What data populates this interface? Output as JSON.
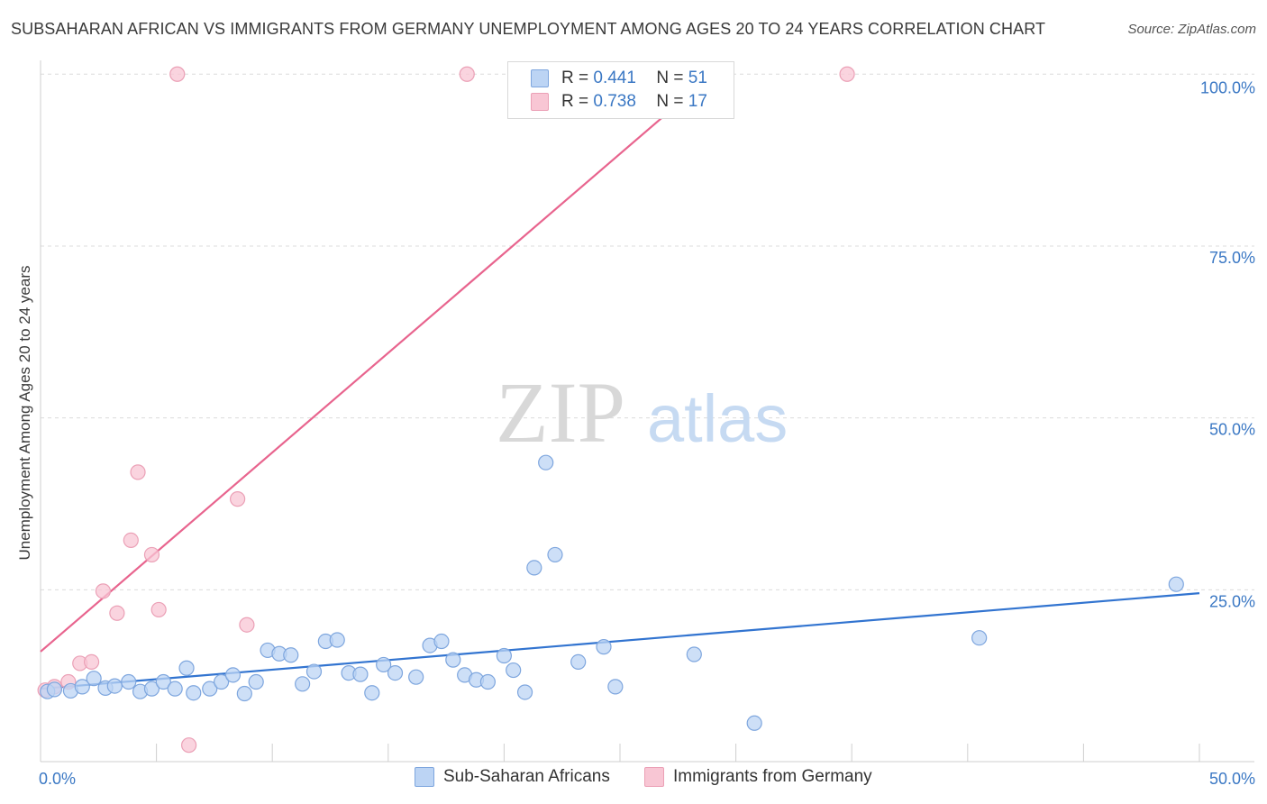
{
  "header": {
    "title": "SUBSAHARAN AFRICAN VS IMMIGRANTS FROM GERMANY UNEMPLOYMENT AMONG AGES 20 TO 24 YEARS CORRELATION CHART",
    "source": "Source: ZipAtlas.com"
  },
  "watermark": {
    "zip": "ZIP",
    "atlas": "atlas"
  },
  "legend": {
    "r_label": "R =",
    "n_label": "N =",
    "series": [
      {
        "name": "Sub-Saharan Africans",
        "r": "0.441",
        "n": "51"
      },
      {
        "name": "Immigrants from Germany",
        "r": "0.738",
        "n": "17"
      }
    ]
  },
  "colors": {
    "blue_fill": "#bcd4f4",
    "blue_stroke": "#7ea6de",
    "blue_line": "#3274d0",
    "pink_fill": "#f8c6d4",
    "pink_stroke": "#eba0b6",
    "pink_line": "#e8648e",
    "axis_text": "#3b78c4"
  },
  "chart_data": {
    "type": "scatter",
    "title": "SUBSAHARAN AFRICAN VS IMMIGRANTS FROM GERMANY UNEMPLOYMENT AMONG AGES 20 TO 24 YEARS CORRELATION CHART",
    "xlabel": "",
    "ylabel": "Unemployment Among Ages 20 to 24 years",
    "xlim": [
      0,
      50
    ],
    "ylim": [
      0,
      102
    ],
    "x_tick_labels": [
      {
        "value": 0,
        "label": "0.0%"
      },
      {
        "value": 50,
        "label": "50.0%"
      }
    ],
    "y_tick_labels": [
      {
        "value": 25,
        "label": "25.0%"
      },
      {
        "value": 50,
        "label": "50.0%"
      },
      {
        "value": 75,
        "label": "75.0%"
      },
      {
        "value": 100,
        "label": "100.0%"
      }
    ],
    "series": [
      {
        "name": "Sub-Saharan Africans",
        "trend": {
          "x": [
            0,
            50
          ],
          "y": [
            10.6,
            24.5
          ]
        },
        "points": [
          [
            0.3,
            10.2
          ],
          [
            0.6,
            10.5
          ],
          [
            1.3,
            10.3
          ],
          [
            1.8,
            10.9
          ],
          [
            2.3,
            12.1
          ],
          [
            2.8,
            10.7
          ],
          [
            3.2,
            11.0
          ],
          [
            3.8,
            11.6
          ],
          [
            4.3,
            10.2
          ],
          [
            4.8,
            10.6
          ],
          [
            5.3,
            11.6
          ],
          [
            5.8,
            10.6
          ],
          [
            6.3,
            13.6
          ],
          [
            6.6,
            10.0
          ],
          [
            7.3,
            10.6
          ],
          [
            7.8,
            11.6
          ],
          [
            8.3,
            12.6
          ],
          [
            8.8,
            9.9
          ],
          [
            9.3,
            11.6
          ],
          [
            9.8,
            16.2
          ],
          [
            10.3,
            15.7
          ],
          [
            10.8,
            15.5
          ],
          [
            11.3,
            11.3
          ],
          [
            11.8,
            13.1
          ],
          [
            12.3,
            17.5
          ],
          [
            12.8,
            17.7
          ],
          [
            13.3,
            12.9
          ],
          [
            13.8,
            12.7
          ],
          [
            14.3,
            10.0
          ],
          [
            14.8,
            14.1
          ],
          [
            15.3,
            12.9
          ],
          [
            16.2,
            12.3
          ],
          [
            16.8,
            16.9
          ],
          [
            17.3,
            17.5
          ],
          [
            17.8,
            14.8
          ],
          [
            18.3,
            12.6
          ],
          [
            18.8,
            11.9
          ],
          [
            19.3,
            11.6
          ],
          [
            20.0,
            15.4
          ],
          [
            20.4,
            13.3
          ],
          [
            20.9,
            10.1
          ],
          [
            21.3,
            28.2
          ],
          [
            21.8,
            43.5
          ],
          [
            22.2,
            30.1
          ],
          [
            23.2,
            14.5
          ],
          [
            24.3,
            16.7
          ],
          [
            24.8,
            10.9
          ],
          [
            28.2,
            15.6
          ],
          [
            30.8,
            5.6
          ],
          [
            40.5,
            18.0
          ],
          [
            49.0,
            25.8
          ]
        ]
      },
      {
        "name": "Immigrants from Germany",
        "trend": {
          "x": [
            0,
            29
          ],
          "y": [
            16.0,
            100.0
          ]
        },
        "points": [
          [
            0.2,
            10.4
          ],
          [
            0.6,
            10.9
          ],
          [
            1.2,
            11.6
          ],
          [
            1.7,
            14.3
          ],
          [
            2.2,
            14.5
          ],
          [
            2.7,
            24.8
          ],
          [
            3.3,
            21.6
          ],
          [
            3.9,
            32.2
          ],
          [
            4.2,
            42.1
          ],
          [
            4.8,
            30.1
          ],
          [
            5.1,
            22.1
          ],
          [
            5.9,
            100.0
          ],
          [
            6.4,
            2.4
          ],
          [
            8.5,
            38.2
          ],
          [
            8.9,
            19.9
          ],
          [
            18.4,
            100.0
          ],
          [
            34.8,
            100.0
          ]
        ]
      }
    ]
  }
}
